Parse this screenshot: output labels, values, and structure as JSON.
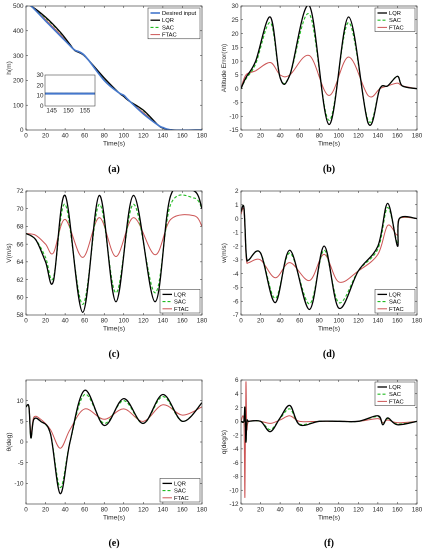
{
  "colors": {
    "lqr": "#000000",
    "sac": "#22bb22",
    "ftac": "#cc5555",
    "desired": "#4477cc",
    "axis": "#262626"
  },
  "series_styles": {
    "Desired input": {
      "color": "#4477cc",
      "dash": "",
      "width": 1.6
    },
    "LQR": {
      "color": "#000000",
      "dash": "",
      "width": 1.3
    },
    "SAC": {
      "color": "#22bb22",
      "dash": "3,2",
      "width": 1.1
    },
    "FTAC": {
      "color": "#cc5555",
      "dash": "",
      "width": 1.0
    }
  },
  "chart_data": [
    {
      "id": "a",
      "type": "line",
      "caption": "(a)",
      "xlabel": "Time(s)",
      "ylabel": "h(m)",
      "xlim": [
        0,
        180
      ],
      "ylim": [
        0,
        500
      ],
      "xticks": [
        0,
        20,
        40,
        60,
        80,
        100,
        120,
        140,
        160,
        180
      ],
      "yticks": [
        0,
        100,
        200,
        300,
        400,
        500
      ],
      "legend": "top-right",
      "inset": {
        "xlim": [
          143,
          158
        ],
        "ylim": [
          0,
          30
        ],
        "xticks": [
          145,
          150,
          155
        ],
        "yticks": [
          0,
          10,
          20,
          30
        ],
        "series": [
          {
            "name": "Desired input",
            "x": [
              143,
              158
            ],
            "y": [
              12,
              12
            ]
          },
          {
            "name": "LQR",
            "x": [
              143,
              158
            ],
            "y": [
              12,
              12
            ]
          },
          {
            "name": "SAC",
            "x": [
              143,
              158
            ],
            "y": [
              12,
              12
            ]
          },
          {
            "name": "FTAC",
            "x": [
              143,
              158
            ],
            "y": [
              12,
              12
            ]
          }
        ]
      },
      "series": [
        {
          "name": "Desired input",
          "x": [
            0,
            5,
            20,
            35,
            45,
            50,
            60,
            80,
            95,
            100,
            105,
            120,
            135,
            140,
            150,
            180
          ],
          "y": [
            500,
            500,
            440,
            380,
            340,
            322,
            300,
            200,
            150,
            140,
            120,
            65,
            20,
            10,
            0,
            0
          ]
        },
        {
          "name": "LQR",
          "x": [
            0,
            5,
            20,
            35,
            45,
            50,
            60,
            80,
            95,
            100,
            105,
            120,
            135,
            140,
            150,
            180
          ],
          "y": [
            500,
            500,
            455,
            395,
            345,
            320,
            298,
            210,
            150,
            135,
            118,
            80,
            20,
            8,
            0,
            0
          ]
        },
        {
          "name": "SAC",
          "x": [
            0,
            5,
            20,
            35,
            45,
            50,
            60,
            80,
            95,
            100,
            105,
            120,
            135,
            140,
            150,
            180
          ],
          "y": [
            500,
            500,
            452,
            393,
            344,
            321,
            299,
            208,
            151,
            136,
            119,
            78,
            20,
            9,
            0,
            0
          ]
        },
        {
          "name": "FTAC",
          "x": [
            0,
            5,
            20,
            35,
            45,
            50,
            60,
            80,
            95,
            100,
            105,
            120,
            135,
            140,
            150,
            180
          ],
          "y": [
            500,
            500,
            445,
            385,
            342,
            322,
            300,
            203,
            150,
            138,
            120,
            70,
            20,
            9,
            0,
            0
          ]
        }
      ]
    },
    {
      "id": "b",
      "type": "line",
      "caption": "(b)",
      "xlabel": "Time(s)",
      "ylabel": "Altitude Error(m)",
      "xlim": [
        0,
        180
      ],
      "ylim": [
        -15,
        30
      ],
      "xticks": [
        0,
        20,
        40,
        60,
        80,
        100,
        120,
        140,
        160,
        180
      ],
      "yticks": [
        -15,
        -10,
        -5,
        0,
        5,
        10,
        15,
        20,
        25,
        30
      ],
      "legend": "top-right",
      "series": [
        {
          "name": "LQR",
          "x": [
            0,
            5,
            15,
            30,
            40,
            50,
            70,
            90,
            110,
            130,
            142,
            150,
            160,
            165,
            180
          ],
          "y": [
            0,
            4,
            10,
            26,
            4,
            5,
            30,
            -13,
            26,
            -12.5,
            0,
            1,
            4.5,
            1,
            0
          ]
        },
        {
          "name": "SAC",
          "x": [
            0,
            5,
            15,
            30,
            40,
            50,
            70,
            90,
            110,
            130,
            142,
            150,
            160,
            165,
            180
          ],
          "y": [
            0,
            3.5,
            9,
            24,
            4,
            5,
            27,
            -11.5,
            24,
            -11.5,
            0,
            1,
            4.5,
            1,
            0
          ]
        },
        {
          "name": "FTAC",
          "x": [
            0,
            5,
            15,
            30,
            40,
            50,
            70,
            90,
            110,
            130,
            142,
            150,
            160,
            165,
            180
          ],
          "y": [
            0,
            5,
            6.5,
            9.5,
            5,
            5,
            12,
            -2.5,
            11.5,
            -2.5,
            0,
            1,
            2,
            1,
            0
          ]
        }
      ]
    },
    {
      "id": "c",
      "type": "line",
      "caption": "(c)",
      "xlabel": "Time(s)",
      "ylabel": "V(m/s)",
      "xlim": [
        0,
        180
      ],
      "ylim": [
        58,
        72
      ],
      "xticks": [
        0,
        20,
        40,
        60,
        80,
        100,
        120,
        140,
        160,
        180
      ],
      "yticks": [
        58,
        60,
        62,
        64,
        66,
        68,
        70,
        72
      ],
      "legend": "bottom-right",
      "series": [
        {
          "name": "LQR",
          "x": [
            0,
            10,
            20,
            28,
            40,
            58,
            75,
            92,
            110,
            132,
            148,
            172,
            180
          ],
          "y": [
            67.2,
            66.5,
            64,
            61.8,
            71.5,
            58.3,
            71.5,
            59.5,
            71.5,
            59.5,
            71.5,
            72,
            70
          ]
        },
        {
          "name": "SAC",
          "x": [
            0,
            10,
            20,
            28,
            40,
            58,
            75,
            92,
            110,
            132,
            148,
            172,
            180
          ],
          "y": [
            67.2,
            66.5,
            64.5,
            62.2,
            70.5,
            59.2,
            70.5,
            60.5,
            70.5,
            60.5,
            70.5,
            71.2,
            70
          ]
        },
        {
          "name": "FTAC",
          "x": [
            0,
            10,
            20,
            28,
            40,
            58,
            75,
            92,
            110,
            132,
            148,
            172,
            180
          ],
          "y": [
            67.2,
            67,
            66,
            65,
            68.8,
            64.5,
            69,
            64.6,
            69,
            64.8,
            68.8,
            69.2,
            68
          ]
        }
      ]
    },
    {
      "id": "d",
      "type": "line",
      "caption": "(d)",
      "xlabel": "Time(s)",
      "ylabel": "w(m/s)",
      "xlim": [
        0,
        180
      ],
      "ylim": [
        -7,
        2
      ],
      "xticks": [
        0,
        20,
        40,
        60,
        80,
        100,
        120,
        140,
        160,
        180
      ],
      "yticks": [
        -7,
        -6,
        -5,
        -4,
        -3,
        -2,
        -1,
        0,
        1,
        2
      ],
      "legend": "bottom-right",
      "series": [
        {
          "name": "LQR",
          "x": [
            0,
            3,
            5,
            6,
            8,
            20,
            35,
            50,
            70,
            85,
            100,
            120,
            140,
            150,
            160,
            162,
            180
          ],
          "y": [
            0.5,
            0.8,
            -2.2,
            -3,
            -3,
            -2.5,
            -6.1,
            -2.3,
            -6.6,
            -2,
            -6.5,
            -3.8,
            -2,
            1.1,
            -2,
            0,
            0
          ]
        },
        {
          "name": "SAC",
          "x": [
            0,
            3,
            5,
            6,
            8,
            20,
            35,
            50,
            70,
            85,
            100,
            120,
            140,
            150,
            160,
            162,
            180
          ],
          "y": [
            0.5,
            0.8,
            -2.2,
            -3,
            -3,
            -2.5,
            -5.8,
            -2.5,
            -6.2,
            -2.3,
            -6.1,
            -3.8,
            -2.2,
            0.8,
            -1.8,
            0,
            0
          ]
        },
        {
          "name": "FTAC",
          "x": [
            0,
            3,
            5,
            6,
            8,
            20,
            35,
            50,
            70,
            85,
            100,
            120,
            140,
            150,
            160,
            162,
            180
          ],
          "y": [
            0.3,
            0.6,
            -2.5,
            -3.2,
            -3.2,
            -3,
            -4.3,
            -3.2,
            -4.5,
            -2.6,
            -4.6,
            -3.8,
            -2.6,
            -0.5,
            -1.2,
            0,
            0
          ]
        }
      ]
    },
    {
      "id": "e",
      "type": "line",
      "caption": "(e)",
      "xlabel": "Time(s)",
      "ylabel": "θ(deg)",
      "xlim": [
        0,
        180
      ],
      "ylim": [
        -15,
        15
      ],
      "xticks": [
        0,
        20,
        40,
        60,
        80,
        100,
        120,
        140,
        160,
        180
      ],
      "yticks": [
        -10,
        -5,
        0,
        5,
        10
      ],
      "legend": "bottom-right",
      "series": [
        {
          "name": "LQR",
          "x": [
            0,
            3,
            5,
            8,
            15,
            25,
            35,
            45,
            60,
            80,
            100,
            120,
            140,
            160,
            180
          ],
          "y": [
            8.5,
            8.5,
            1,
            5.5,
            5,
            2,
            -12.5,
            0,
            12.5,
            4,
            10.5,
            4.5,
            11.5,
            5,
            9.5
          ]
        },
        {
          "name": "SAC",
          "x": [
            0,
            3,
            5,
            8,
            15,
            25,
            35,
            45,
            60,
            80,
            100,
            120,
            140,
            160,
            180
          ],
          "y": [
            8.5,
            8.5,
            1,
            5.5,
            5,
            2,
            -11,
            0,
            11.5,
            4.5,
            10,
            4.5,
            11,
            5,
            9.5
          ]
        },
        {
          "name": "FTAC",
          "x": [
            0,
            3,
            5,
            8,
            15,
            25,
            35,
            45,
            60,
            80,
            100,
            120,
            140,
            160,
            180
          ],
          "y": [
            8.5,
            8.5,
            2,
            6,
            5.5,
            3,
            -1.5,
            3,
            8,
            5.5,
            8,
            5,
            9,
            6.5,
            8.5
          ]
        }
      ]
    },
    {
      "id": "f",
      "type": "line",
      "caption": "(f)",
      "xlabel": "Time(s)",
      "ylabel": "q(deg/s)",
      "xlim": [
        0,
        180
      ],
      "ylim": [
        -12,
        6
      ],
      "xticks": [
        0,
        20,
        40,
        60,
        80,
        100,
        120,
        140,
        160,
        180
      ],
      "yticks": [
        -12,
        -10,
        -8,
        -6,
        -4,
        -2,
        0,
        2,
        4,
        6
      ],
      "legend": "top-right",
      "series": [
        {
          "name": "LQR",
          "x": [
            0,
            3,
            4,
            5,
            6,
            8,
            20,
            30,
            40,
            50,
            60,
            80,
            100,
            120,
            140,
            145,
            150,
            160,
            180
          ],
          "y": [
            0,
            0,
            2,
            -3,
            0,
            0,
            0,
            -1.5,
            0.5,
            2.3,
            -0.5,
            0,
            0,
            0,
            0.8,
            -0.5,
            0.5,
            -0.5,
            0
          ]
        },
        {
          "name": "SAC",
          "x": [
            0,
            3,
            4,
            5,
            6,
            8,
            20,
            30,
            40,
            50,
            60,
            80,
            100,
            120,
            140,
            145,
            150,
            160,
            180
          ],
          "y": [
            0,
            0,
            2,
            -3,
            0,
            0,
            0,
            -1.2,
            0.4,
            1.8,
            -0.4,
            0,
            0,
            0,
            0.7,
            -0.4,
            0.4,
            -0.4,
            0
          ]
        },
        {
          "name": "FTAC",
          "x": [
            0,
            3,
            4,
            5,
            6,
            8,
            20,
            30,
            40,
            50,
            60,
            80,
            100,
            120,
            140,
            145,
            150,
            160,
            180
          ],
          "y": [
            0,
            0,
            -11,
            5.5,
            -1,
            0,
            0,
            -0.3,
            0.2,
            0.8,
            0,
            0,
            0,
            0,
            0.4,
            -0.2,
            0.2,
            -0.2,
            0
          ]
        }
      ]
    }
  ]
}
